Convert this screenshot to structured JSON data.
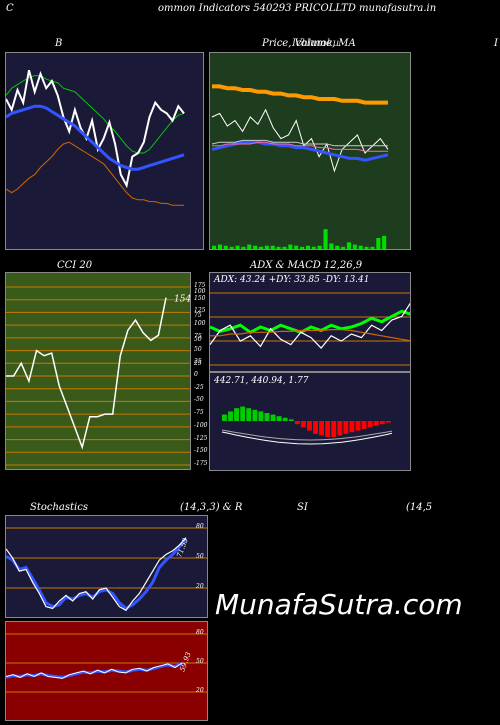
{
  "header": {
    "left_letter": "C",
    "title": "ommon  Indicators 540293 PRICOLLTD munafasutra.in"
  },
  "panel_titles": {
    "bb": "B",
    "price": "Price,  Volume,  MA",
    "price_overlap": "Ichimoku",
    "right_cut": "I",
    "cci": "CCI 20",
    "adx_macd": "ADX  & MACD 12,26,9",
    "stoch_left": "Stochastics",
    "stoch_params": "(14,3,3) & R",
    "rsi": "SI",
    "rsi_params": "(14,5"
  },
  "watermark": "MunafaSutra.com",
  "colors": {
    "bb_bg": "#1a1a38",
    "price_bg": "#1e3d1e",
    "cci_bg": "#3a5a1a",
    "adx_bg": "#1a1a38",
    "stoch_bg": "#1a1a38",
    "rsi_bg": "#8a0000"
  },
  "chart_data": [
    {
      "id": "bollinger",
      "type": "line",
      "ylim": [
        0,
        100
      ],
      "series": [
        {
          "color": "#00cc00",
          "values": [
            82,
            86,
            88,
            90,
            92,
            93,
            93,
            91,
            90,
            89,
            86,
            85,
            84,
            81,
            78,
            75,
            72,
            69,
            65,
            62,
            58,
            54,
            51,
            50,
            50,
            52,
            56,
            60,
            64,
            68,
            71,
            72
          ]
        },
        {
          "color": "#ffffff",
          "values": [
            80,
            74,
            85,
            78,
            96,
            84,
            94,
            86,
            90,
            82,
            70,
            62,
            74,
            64,
            58,
            68,
            52,
            58,
            67,
            55,
            38,
            32,
            48,
            50,
            56,
            70,
            78,
            74,
            72,
            68,
            76,
            72
          ]
        },
        {
          "color": "#3355ff",
          "values": [
            70,
            72,
            73,
            74,
            75,
            76,
            76,
            75,
            73,
            71,
            69,
            67,
            65,
            62,
            59,
            56,
            53,
            50,
            47,
            45,
            43,
            42,
            41,
            41,
            42,
            43,
            44,
            45,
            46,
            47,
            48,
            49
          ]
        },
        {
          "color": "#cc6600",
          "values": [
            30,
            28,
            30,
            33,
            36,
            38,
            42,
            45,
            48,
            52,
            55,
            56,
            54,
            52,
            50,
            48,
            46,
            44,
            40,
            36,
            32,
            28,
            25,
            24,
            24,
            23,
            23,
            22,
            22,
            21,
            21,
            21
          ]
        }
      ]
    },
    {
      "id": "price_volume_ma",
      "type": "line",
      "ylim": [
        0,
        100
      ],
      "series": [
        {
          "color": "#ff9900",
          "values": [
            87,
            87,
            86,
            86,
            85,
            85,
            84,
            84,
            83,
            83,
            82,
            82,
            81,
            81,
            80,
            80,
            80,
            79,
            79,
            79,
            78,
            78,
            78,
            78
          ]
        },
        {
          "color": "#ffffff",
          "values": [
            70,
            72,
            65,
            68,
            62,
            70,
            66,
            74,
            64,
            58,
            60,
            68,
            54,
            58,
            48,
            55,
            40,
            52,
            56,
            60,
            50,
            54,
            58,
            52
          ]
        },
        {
          "color": "#3355ff",
          "values": [
            52,
            53,
            54,
            55,
            56,
            56,
            56,
            55,
            55,
            54,
            54,
            53,
            53,
            52,
            51,
            50,
            49,
            48,
            47,
            47,
            46,
            47,
            48,
            49
          ]
        },
        {
          "color": "#ff66aa",
          "values": [
            54,
            54,
            55,
            55,
            55,
            55,
            56,
            56,
            55,
            55,
            55,
            54,
            54,
            54,
            53,
            53,
            52,
            52,
            52,
            52,
            51,
            51,
            51,
            51
          ]
        },
        {
          "color": "#cccccc",
          "values": [
            55,
            56,
            56,
            56,
            57,
            57,
            57,
            57,
            56,
            56,
            56,
            56,
            55,
            55,
            55,
            55,
            54,
            54,
            54,
            54,
            54,
            54,
            54,
            54
          ]
        }
      ],
      "volume": [
        3,
        4,
        3,
        2,
        3,
        2,
        4,
        3,
        2,
        3,
        3,
        2,
        2,
        4,
        3,
        2,
        3,
        2,
        3,
        18,
        5,
        3,
        2,
        6,
        4,
        3,
        2,
        2,
        10,
        12
      ]
    },
    {
      "id": "cci",
      "type": "line",
      "ylim": [
        -175,
        175
      ],
      "ytick_labels": [
        "175",
        "150",
        "125",
        "100",
        "75",
        "50",
        "25",
        "0",
        "-25",
        "-50",
        "-75",
        "-100",
        "-125",
        "-150",
        "-175"
      ],
      "value_label": "154",
      "values": [
        0,
        0,
        25,
        -10,
        50,
        40,
        45,
        -20,
        -60,
        -100,
        -140,
        -80,
        -80,
        -75,
        -75,
        40,
        90,
        110,
        85,
        70,
        80,
        154
      ]
    },
    {
      "id": "adx",
      "type": "line",
      "text": "ADX: 43.24   +DY: 33.85 -DY: 13.41",
      "ytick_labels": [
        "100",
        "75",
        "50",
        "25"
      ],
      "series": [
        {
          "color": "#00ff00",
          "values": [
            50,
            45,
            48,
            52,
            44,
            50,
            46,
            52,
            48,
            44,
            50,
            46,
            52,
            48,
            50,
            54,
            60,
            56,
            62,
            68,
            64
          ]
        },
        {
          "color": "#ffffff",
          "values": [
            30,
            46,
            52,
            34,
            40,
            28,
            48,
            36,
            30,
            44,
            38,
            26,
            40,
            34,
            42,
            38,
            52,
            46,
            58,
            62,
            80
          ]
        },
        {
          "color": "#cc6600",
          "values": [
            40,
            40,
            42,
            42,
            44,
            44,
            44,
            45,
            45,
            46,
            46,
            46,
            47,
            47,
            46,
            44,
            42,
            40,
            38,
            36,
            34
          ]
        }
      ]
    },
    {
      "id": "macd",
      "type": "bar",
      "text": "442.71,   440.94,   1.77",
      "histogram": [
        4,
        6,
        8,
        9,
        8,
        7,
        6,
        5,
        4,
        3,
        2,
        1,
        -2,
        -4,
        -6,
        -8,
        -9,
        -10,
        -10,
        -9,
        -8,
        -7,
        -6,
        -5,
        -4,
        -3,
        -2,
        -1
      ]
    },
    {
      "id": "stochastics",
      "type": "line",
      "ytick_labels": [
        "80",
        "50",
        "20"
      ],
      "value_label": "71.53",
      "series": [
        {
          "color": "#3355ff",
          "values": [
            62,
            58,
            48,
            50,
            38,
            26,
            12,
            8,
            10,
            18,
            16,
            20,
            22,
            18,
            24,
            26,
            22,
            12,
            6,
            10,
            16,
            24,
            34,
            50,
            58,
            64,
            72,
            80
          ]
        },
        {
          "color": "#ffffff",
          "values": [
            70,
            60,
            46,
            48,
            34,
            22,
            8,
            6,
            14,
            20,
            14,
            22,
            24,
            16,
            26,
            28,
            18,
            8,
            4,
            14,
            22,
            34,
            46,
            58,
            64,
            68,
            74,
            82
          ]
        }
      ]
    },
    {
      "id": "rsi",
      "type": "line",
      "ytick_labels": [
        "80",
        "50",
        "20"
      ],
      "value_label": "59.93",
      "series": [
        {
          "color": "#3355ff",
          "values": [
            44,
            46,
            45,
            47,
            46,
            48,
            46,
            45,
            44,
            46,
            48,
            50,
            49,
            51,
            50,
            52,
            51,
            50,
            52,
            53,
            52,
            54,
            56,
            58,
            56,
            60
          ]
        },
        {
          "color": "#ffffff",
          "values": [
            45,
            47,
            44,
            48,
            45,
            49,
            45,
            44,
            43,
            47,
            49,
            51,
            48,
            52,
            49,
            53,
            50,
            49,
            53,
            54,
            51,
            55,
            57,
            59,
            55,
            60
          ]
        }
      ]
    }
  ]
}
